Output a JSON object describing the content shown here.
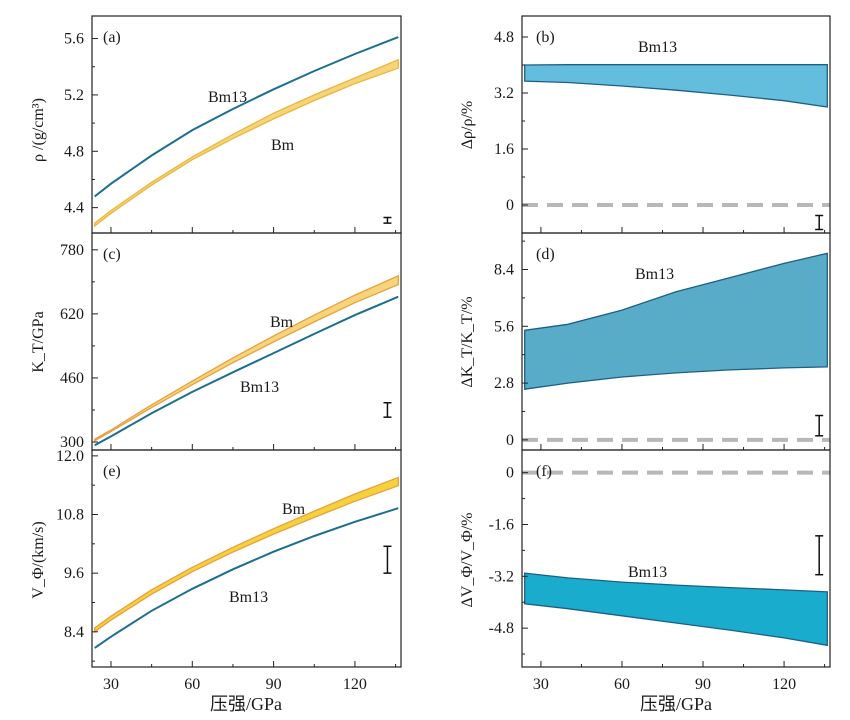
{
  "chart_data": [
    {
      "id": "a",
      "type": "line",
      "panel_label": "(a)",
      "ylabel": "ρ /(g/cm³)",
      "xlabel": "",
      "xlim": [
        23,
        137
      ],
      "ylim": [
        4.22,
        5.76
      ],
      "yticks": [
        4.4,
        4.8,
        5.2,
        5.6
      ],
      "ytick_labels": [
        "4.4",
        "4.8",
        "5.2",
        "5.6"
      ],
      "error_bar": {
        "x": 132,
        "low": 4.29,
        "high": 4.33
      },
      "series": [
        {
          "name": "Bm13",
          "kind": "line",
          "color": "#1d6e8f",
          "x": [
            24,
            30,
            45,
            60,
            75,
            90,
            105,
            120,
            136
          ],
          "y": [
            4.48,
            4.57,
            4.77,
            4.95,
            5.1,
            5.24,
            5.37,
            5.49,
            5.61
          ]
        },
        {
          "name": "Bm",
          "kind": "band",
          "color": "#e9b741",
          "fill": "#f6d57a",
          "x": [
            24,
            30,
            45,
            60,
            75,
            90,
            105,
            120,
            136
          ],
          "upper": [
            4.29,
            4.38,
            4.58,
            4.76,
            4.92,
            5.07,
            5.2,
            5.32,
            5.45
          ],
          "lower": [
            4.27,
            4.36,
            4.56,
            4.74,
            4.89,
            5.03,
            5.16,
            5.28,
            5.39
          ]
        }
      ]
    },
    {
      "id": "c",
      "type": "line",
      "panel_label": "(c)",
      "ylabel": "K_T/GPa",
      "xlabel": "",
      "xlim": [
        23,
        137
      ],
      "ylim": [
        280,
        822
      ],
      "yticks": [
        300,
        460,
        620,
        780
      ],
      "ytick_labels": [
        "300",
        "460",
        "620",
        "780"
      ],
      "error_bar": {
        "x": 132,
        "low": 362,
        "high": 398
      },
      "series": [
        {
          "name": "Bm",
          "kind": "band",
          "color": "#e9a040",
          "fill": "#f6d57a",
          "x": [
            24,
            30,
            45,
            60,
            75,
            90,
            105,
            120,
            136
          ],
          "upper": [
            307,
            330,
            393,
            452,
            510,
            565,
            617,
            667,
            715
          ],
          "lower": [
            303,
            326,
            386,
            443,
            498,
            550,
            600,
            648,
            693
          ]
        },
        {
          "name": "Bm13",
          "kind": "line",
          "color": "#1d6e8f",
          "x": [
            24,
            30,
            45,
            60,
            75,
            90,
            105,
            120,
            136
          ],
          "y": [
            292,
            314,
            372,
            425,
            474,
            522,
            570,
            617,
            663
          ]
        }
      ]
    },
    {
      "id": "e",
      "type": "line",
      "panel_label": "(e)",
      "ylabel": "V_Φ/(km/s)",
      "xlabel": "压强/GPa",
      "xlim": [
        23,
        137
      ],
      "ylim": [
        7.68,
        12.12
      ],
      "yticks": [
        8.4,
        9.6,
        10.8,
        12.0
      ],
      "ytick_labels": [
        "8.4",
        "9.6",
        "10.8",
        "12.0"
      ],
      "xticks": [
        30,
        60,
        90,
        120
      ],
      "xtick_labels": [
        "30",
        "60",
        "90",
        "120"
      ],
      "error_bar": {
        "x": 132,
        "low": 9.6,
        "high": 10.15
      },
      "series": [
        {
          "name": "Bm",
          "kind": "band",
          "color": "#e9a040",
          "fill": "#f5d23c",
          "x": [
            24,
            30,
            45,
            60,
            75,
            90,
            105,
            120,
            136
          ],
          "upper": [
            8.48,
            8.72,
            9.26,
            9.72,
            10.13,
            10.51,
            10.87,
            11.22,
            11.56
          ],
          "lower": [
            8.4,
            8.64,
            9.17,
            9.63,
            10.03,
            10.4,
            10.74,
            11.07,
            11.39
          ]
        },
        {
          "name": "Bm13",
          "kind": "line",
          "color": "#1d6e8f",
          "x": [
            24,
            30,
            45,
            60,
            75,
            90,
            105,
            120,
            136
          ],
          "y": [
            8.07,
            8.3,
            8.83,
            9.28,
            9.68,
            10.04,
            10.36,
            10.65,
            10.93
          ]
        }
      ]
    },
    {
      "id": "b",
      "type": "area",
      "panel_label": "(b)",
      "ylabel": "Δρ/ρ/%",
      "xlabel": "",
      "xlim": [
        23,
        137
      ],
      "ylim": [
        -0.8,
        5.4
      ],
      "yticks": [
        0,
        1.6,
        3.2,
        4.8
      ],
      "ytick_labels": [
        "0",
        "1.6",
        "3.2",
        "4.8"
      ],
      "error_bar": {
        "x": 133,
        "low": -0.7,
        "high": -0.3
      },
      "zero_line": 0,
      "series": [
        {
          "name": "Bm13",
          "kind": "band",
          "color": "#1d5f86",
          "fill": "#62bedc",
          "x": [
            24,
            40,
            60,
            80,
            100,
            120,
            136
          ],
          "upper": [
            4.0,
            4.01,
            4.01,
            4.01,
            4.01,
            4.01,
            4.01
          ],
          "lower": [
            3.54,
            3.5,
            3.4,
            3.28,
            3.14,
            2.98,
            2.8
          ]
        }
      ]
    },
    {
      "id": "d",
      "type": "area",
      "panel_label": "(d)",
      "ylabel": "ΔK_T/K_T/%",
      "xlabel": "",
      "xlim": [
        23,
        137
      ],
      "ylim": [
        -0.5,
        10.2
      ],
      "yticks": [
        0,
        2.8,
        5.6,
        8.4
      ],
      "ytick_labels": [
        "0",
        "2.8",
        "5.6",
        "8.4"
      ],
      "error_bar": {
        "x": 133,
        "low": 0.2,
        "high": 1.2
      },
      "zero_line": 0,
      "series": [
        {
          "name": "Bm13",
          "kind": "band",
          "color": "#1d5f86",
          "fill": "#58acc8",
          "x": [
            24,
            40,
            60,
            80,
            100,
            120,
            136
          ],
          "upper": [
            5.4,
            5.7,
            6.4,
            7.3,
            8.0,
            8.7,
            9.2
          ],
          "lower": [
            2.5,
            2.8,
            3.1,
            3.3,
            3.45,
            3.55,
            3.6
          ]
        }
      ]
    },
    {
      "id": "f",
      "type": "area",
      "panel_label": "(f)",
      "ylabel": "ΔV_Φ/V_Φ/%",
      "xlabel": "压强/GPa",
      "xlim": [
        23,
        137
      ],
      "ylim": [
        -6.0,
        0.7
      ],
      "yticks": [
        -4.8,
        -3.2,
        -1.6,
        0
      ],
      "ytick_labels": [
        "-4.8",
        "-3.2",
        "-1.6",
        "0"
      ],
      "xticks": [
        30,
        60,
        90,
        120
      ],
      "xtick_labels": [
        "30",
        "60",
        "90",
        "120"
      ],
      "error_bar": {
        "x": 133,
        "low": -3.15,
        "high": -1.95
      },
      "zero_line": 0,
      "series": [
        {
          "name": "Bm13",
          "kind": "band",
          "color": "#1d5f86",
          "fill": "#1aaccc",
          "x": [
            24,
            40,
            60,
            80,
            100,
            120,
            136
          ],
          "upper": [
            -3.1,
            -3.25,
            -3.38,
            -3.47,
            -3.55,
            -3.62,
            -3.68
          ],
          "lower": [
            -4.05,
            -4.2,
            -4.42,
            -4.64,
            -4.86,
            -5.1,
            -5.33
          ]
        }
      ]
    }
  ]
}
